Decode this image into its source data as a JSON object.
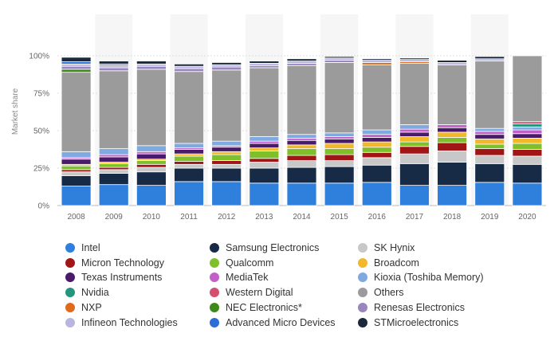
{
  "chart_data": {
    "type": "bar",
    "stacked": true,
    "ylabel": "Market share",
    "ylim": [
      0,
      100
    ],
    "yticks": [
      "0%",
      "25%",
      "50%",
      "75%",
      "100%"
    ],
    "grid": true,
    "legend_position": "bottom",
    "categories": [
      "2008",
      "2009",
      "2010",
      "2011",
      "2012",
      "2013",
      "2014",
      "2015",
      "2016",
      "2017",
      "2018",
      "2019",
      "2020"
    ],
    "series": [
      {
        "name": "Intel",
        "color": "#2f7fdd",
        "values": [
          13,
          14,
          13.5,
          16,
          16,
          15,
          15,
          15,
          15.5,
          13.5,
          13.5,
          15.5,
          15
        ]
      },
      {
        "name": "Samsung Electronics",
        "color": "#172b47",
        "values": [
          7,
          7.5,
          9,
          9,
          9,
          10,
          10.5,
          11,
          11.5,
          14.5,
          15.5,
          12.5,
          12.5
        ]
      },
      {
        "name": "SK Hynix",
        "color": "#c8c8c8",
        "values": [
          2.5,
          2.5,
          3,
          2.5,
          2.5,
          4,
          4.5,
          4,
          5,
          6.5,
          7.5,
          5.5,
          5.5
        ]
      },
      {
        "name": "Micron Technology",
        "color": "#a01515",
        "values": [
          1.5,
          1.5,
          2,
          2,
          2.5,
          2.5,
          3.5,
          4,
          3.5,
          5,
          5.5,
          4.5,
          4.5
        ]
      },
      {
        "name": "Qualcomm",
        "color": "#7fbf2a",
        "values": [
          2.5,
          2.5,
          2.5,
          3.5,
          4,
          5,
          4.5,
          4,
          3.5,
          3,
          3.5,
          3,
          4
        ]
      },
      {
        "name": "Broadcom",
        "color": "#f0b82a",
        "values": [
          1,
          1,
          1,
          1.5,
          2,
          2,
          2.5,
          3.5,
          3.5,
          3.5,
          3.5,
          3.5,
          3.5
        ]
      },
      {
        "name": "Texas Instruments",
        "color": "#4a1a6b",
        "values": [
          3.5,
          3.5,
          3.5,
          3,
          3,
          3,
          3,
          3,
          3,
          3,
          3,
          3,
          3
        ]
      },
      {
        "name": "MediaTek",
        "color": "#c35fc9",
        "values": [
          1,
          1.5,
          1.5,
          1,
          1,
          1.5,
          1.5,
          1.5,
          2,
          2,
          2,
          2,
          2.5
        ]
      },
      {
        "name": "Kioxia (Toshiba Memory)",
        "color": "#7ea9e1",
        "values": [
          4,
          4,
          4,
          3,
          3,
          3,
          2.5,
          2.5,
          3,
          3,
          0,
          2,
          2
        ]
      },
      {
        "name": "Nvidia",
        "color": "#23957e",
        "values": [
          0,
          0,
          0,
          0,
          0,
          0,
          0,
          0,
          0,
          0,
          0,
          0,
          2
        ]
      },
      {
        "name": "Western Digital",
        "color": "#d44f6e",
        "values": [
          0,
          0,
          0,
          0,
          0,
          0,
          0,
          0,
          0,
          0,
          0,
          0,
          1.5
        ]
      },
      {
        "name": "Others",
        "color": "#9b9b9b",
        "values": [
          53,
          52,
          51,
          48,
          47.5,
          46,
          46,
          47,
          43.5,
          41,
          40,
          45,
          44
        ]
      },
      {
        "name": "NXP",
        "color": "#de6a1a",
        "values": [
          0,
          0,
          0,
          0,
          0,
          0,
          0,
          0,
          1.5,
          1,
          0,
          0,
          0
        ]
      },
      {
        "name": "NEC Electronics*",
        "color": "#3d8a16",
        "values": [
          2,
          0,
          0,
          0,
          0,
          0,
          0,
          0,
          0,
          0,
          0,
          0,
          0
        ]
      },
      {
        "name": "Renesas Electronics",
        "color": "#9a86bf",
        "values": [
          2,
          2,
          2,
          2,
          2,
          1.5,
          1.5,
          1.5,
          0,
          0,
          0,
          0,
          0
        ]
      },
      {
        "name": "Infineon Technologies",
        "color": "#b8b6e0",
        "values": [
          1.5,
          1.5,
          1.5,
          1.5,
          1.5,
          1.5,
          1.5,
          1.5,
          1.5,
          1.5,
          1.5,
          1.5,
          0
        ]
      },
      {
        "name": "Advanced Micro Devices",
        "color": "#2c6ed6",
        "values": [
          1.5,
          1,
          0,
          0,
          0,
          0,
          0,
          0,
          0,
          0,
          0,
          0,
          0
        ]
      },
      {
        "name": "STMicroelectronics",
        "color": "#1b2a3b",
        "values": [
          3,
          2,
          2,
          1.5,
          1.5,
          1.5,
          1.5,
          1,
          1,
          1,
          1.5,
          1.5,
          0
        ]
      }
    ]
  }
}
